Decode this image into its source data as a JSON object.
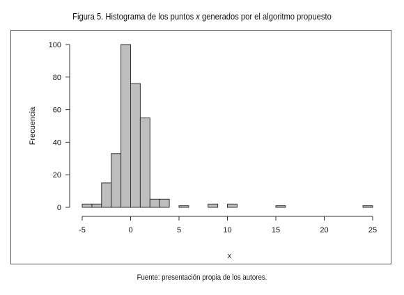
{
  "figure": {
    "title_prefix": "Figura 5. Histograma de los puntos ",
    "title_var": "x",
    "title_suffix": " generados por el algoritmo propuesto",
    "source": "Fuente: presentación propia de los autores."
  },
  "chart_data": {
    "type": "bar",
    "subtype": "histogram",
    "xlabel": "x",
    "ylabel": "Frecuencia",
    "xlim": [
      -5,
      25
    ],
    "ylim": [
      0,
      100
    ],
    "xticks": [
      -5,
      0,
      5,
      10,
      15,
      20,
      25
    ],
    "yticks": [
      0,
      20,
      40,
      60,
      80,
      100
    ],
    "bin_width": 1,
    "bins": [
      {
        "start": -5,
        "end": -4,
        "count": 2
      },
      {
        "start": -4,
        "end": -3,
        "count": 2
      },
      {
        "start": -3,
        "end": -2,
        "count": 15
      },
      {
        "start": -2,
        "end": -1,
        "count": 33
      },
      {
        "start": -1,
        "end": 0,
        "count": 100
      },
      {
        "start": 0,
        "end": 1,
        "count": 76
      },
      {
        "start": 1,
        "end": 2,
        "count": 55
      },
      {
        "start": 2,
        "end": 3,
        "count": 5
      },
      {
        "start": 3,
        "end": 4,
        "count": 5
      },
      {
        "start": 4,
        "end": 5,
        "count": 0
      },
      {
        "start": 5,
        "end": 6,
        "count": 1
      },
      {
        "start": 6,
        "end": 7,
        "count": 0
      },
      {
        "start": 7,
        "end": 8,
        "count": 0
      },
      {
        "start": 8,
        "end": 9,
        "count": 2
      },
      {
        "start": 9,
        "end": 10,
        "count": 0
      },
      {
        "start": 10,
        "end": 11,
        "count": 2
      },
      {
        "start": 11,
        "end": 12,
        "count": 0
      },
      {
        "start": 12,
        "end": 13,
        "count": 0
      },
      {
        "start": 13,
        "end": 14,
        "count": 0
      },
      {
        "start": 14,
        "end": 15,
        "count": 0
      },
      {
        "start": 15,
        "end": 16,
        "count": 1
      },
      {
        "start": 16,
        "end": 17,
        "count": 0
      },
      {
        "start": 17,
        "end": 18,
        "count": 0
      },
      {
        "start": 18,
        "end": 19,
        "count": 0
      },
      {
        "start": 19,
        "end": 20,
        "count": 0
      },
      {
        "start": 20,
        "end": 21,
        "count": 0
      },
      {
        "start": 21,
        "end": 22,
        "count": 0
      },
      {
        "start": 22,
        "end": 23,
        "count": 0
      },
      {
        "start": 23,
        "end": 24,
        "count": 0
      },
      {
        "start": 24,
        "end": 25,
        "count": 1
      }
    ],
    "bar_color": "#bebebe",
    "bar_edge_color": "#333333",
    "grid": false,
    "legend": "none"
  }
}
